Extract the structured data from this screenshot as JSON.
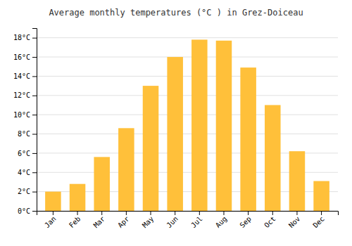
{
  "chart_data": {
    "type": "bar",
    "title": "Average monthly temperatures (°C ) in Grez-Doiceau",
    "categories": [
      "Jan",
      "Feb",
      "Mar",
      "Apr",
      "May",
      "Jun",
      "Jul",
      "Aug",
      "Sep",
      "Oct",
      "Nov",
      "Dec"
    ],
    "values": [
      2.0,
      2.8,
      5.6,
      8.6,
      13.0,
      16.0,
      17.8,
      17.7,
      14.9,
      11.0,
      6.2,
      3.1
    ],
    "color": "#FFC03A",
    "ylim": [
      0,
      19
    ],
    "yticks": [
      {
        "value": 0,
        "label": "0°C"
      },
      {
        "value": 2,
        "label": "2°C"
      },
      {
        "value": 4,
        "label": "4°C"
      },
      {
        "value": 6,
        "label": "6°C"
      },
      {
        "value": 8,
        "label": "8°C"
      },
      {
        "value": 10,
        "label": "10°C"
      },
      {
        "value": 12,
        "label": "12°C"
      },
      {
        "value": 14,
        "label": "14°C"
      },
      {
        "value": 16,
        "label": "16°C"
      },
      {
        "value": 18,
        "label": "18°C"
      }
    ],
    "grid": true
  }
}
